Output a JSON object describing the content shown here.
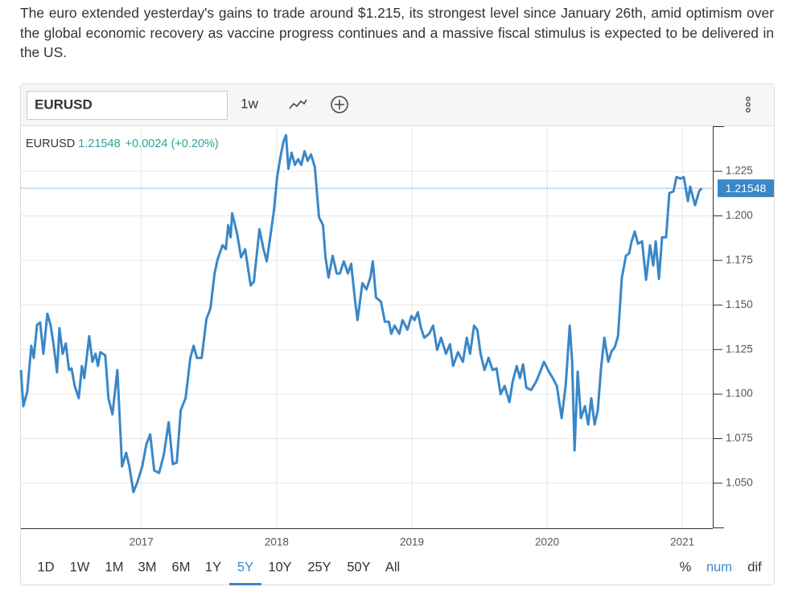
{
  "paragraph": "The euro extended yesterday's gains to trade around $1.215, its strongest level since January 26th, amid optimism over the global economic recovery as vaccine progress continues and a massive fiscal stimulus is expected to be delivered in the US.",
  "toolbar": {
    "symbol": "EURUSD",
    "interval": "1w"
  },
  "chart_data": {
    "type": "line",
    "symbol": "EURUSD",
    "last_price": 1.21548,
    "change": "+0.0024 (+0.20%)",
    "x": [
      2016.109,
      2016.127,
      2016.156,
      2016.186,
      2016.204,
      2016.228,
      2016.251,
      2016.275,
      2016.305,
      2016.329,
      2016.352,
      2016.376,
      2016.394,
      2016.418,
      2016.441,
      2016.465,
      2016.483,
      2016.507,
      2016.537,
      2016.56,
      2016.578,
      2016.614,
      2016.638,
      2016.661,
      2016.679,
      2016.697,
      2016.733,
      2016.756,
      2016.786,
      2016.822,
      2016.857,
      2016.887,
      2016.911,
      2016.941,
      2016.97,
      2017.006,
      2017.036,
      2017.065,
      2017.095,
      2017.131,
      2017.166,
      2017.202,
      2017.232,
      2017.261,
      2017.291,
      2017.327,
      2017.362,
      2017.386,
      2017.41,
      2017.446,
      2017.481,
      2017.511,
      2017.541,
      2017.564,
      2017.6,
      2017.624,
      2017.642,
      2017.66,
      2017.671,
      2017.707,
      2017.737,
      2017.767,
      2017.808,
      2017.832,
      2017.873,
      2017.903,
      2017.927,
      2017.957,
      2017.98,
      2018.004,
      2018.028,
      2018.052,
      2018.07,
      2018.087,
      2018.111,
      2018.135,
      2018.159,
      2018.182,
      2018.206,
      2018.23,
      2018.254,
      2018.283,
      2018.313,
      2018.343,
      2018.361,
      2018.384,
      2018.414,
      2018.444,
      2018.468,
      2018.497,
      2018.527,
      2018.551,
      2018.581,
      2018.598,
      2018.634,
      2018.664,
      2018.693,
      2018.711,
      2018.735,
      2018.771,
      2018.8,
      2018.83,
      2018.848,
      2018.872,
      2018.907,
      2018.931,
      2018.967,
      2018.997,
      2019.02,
      2019.044,
      2019.068,
      2019.092,
      2019.127,
      2019.157,
      2019.187,
      2019.216,
      2019.252,
      2019.282,
      2019.305,
      2019.341,
      2019.377,
      2019.406,
      2019.43,
      2019.46,
      2019.484,
      2019.508,
      2019.537,
      2019.567,
      2019.597,
      2019.626,
      2019.656,
      2019.686,
      2019.721,
      2019.745,
      2019.775,
      2019.799,
      2019.822,
      2019.846,
      2019.882,
      2019.918,
      2019.947,
      2019.977,
      2020.013,
      2020.042,
      2020.072,
      2020.108,
      2020.137,
      2020.167,
      2020.185,
      2020.203,
      2020.226,
      2020.25,
      2020.28,
      2020.304,
      2020.327,
      2020.351,
      2020.375,
      2020.399,
      2020.423,
      2020.452,
      2020.476,
      2020.5,
      2020.524,
      2020.553,
      2020.583,
      2020.607,
      2020.625,
      2020.648,
      2020.672,
      2020.702,
      2020.732,
      2020.761,
      2020.785,
      2020.803,
      2020.827,
      2020.85,
      2020.88,
      2020.904,
      2020.934,
      2020.957,
      2020.987,
      2021.011,
      2021.041,
      2021.058,
      2021.094,
      2021.124,
      2021.142
    ],
    "series": [
      {
        "name": "EURUSD",
        "color": "#3a87c8",
        "values": [
          1.1135,
          1.0932,
          1.1014,
          1.1271,
          1.1203,
          1.1388,
          1.1402,
          1.1226,
          1.1451,
          1.1384,
          1.1271,
          1.1122,
          1.137,
          1.1226,
          1.1284,
          1.1135,
          1.1144,
          1.1045,
          1.0977,
          1.1158,
          1.109,
          1.1325,
          1.1181,
          1.1226,
          1.1158,
          1.1235,
          1.1217,
          1.0977,
          1.0887,
          1.1135,
          1.0594,
          1.0671,
          1.0594,
          1.045,
          1.0504,
          1.0594,
          1.0716,
          1.0774,
          1.0571,
          1.0558,
          1.0661,
          1.0842,
          1.0607,
          1.0616,
          1.091,
          1.0977,
          1.1203,
          1.1271,
          1.1203,
          1.1203,
          1.142,
          1.1483,
          1.1677,
          1.1758,
          1.1835,
          1.1813,
          1.1948,
          1.188,
          1.2015,
          1.1903,
          1.1767,
          1.1813,
          1.1609,
          1.1632,
          1.1925,
          1.1813,
          1.1745,
          1.1903,
          1.2029,
          1.2218,
          1.2331,
          1.2421,
          1.2453,
          1.2264,
          1.2354,
          1.2286,
          1.2318,
          1.2286,
          1.2363,
          1.2309,
          1.2345,
          1.2273,
          1.1993,
          1.1948,
          1.1767,
          1.1654,
          1.1776,
          1.1677,
          1.1677,
          1.1745,
          1.1677,
          1.1731,
          1.1519,
          1.1415,
          1.1623,
          1.1587,
          1.1654,
          1.1745,
          1.1542,
          1.1519,
          1.1406,
          1.1406,
          1.1338,
          1.1384,
          1.1338,
          1.1415,
          1.1361,
          1.1438,
          1.1415,
          1.146,
          1.137,
          1.1316,
          1.1338,
          1.1384,
          1.1248,
          1.1316,
          1.1226,
          1.128,
          1.1158,
          1.1235,
          1.1181,
          1.1316,
          1.1226,
          1.1384,
          1.1361,
          1.1226,
          1.1135,
          1.1203,
          1.1135,
          1.1144,
          1.1,
          1.1045,
          1.0955,
          1.1068,
          1.1158,
          1.109,
          1.1167,
          1.1036,
          1.1023,
          1.1068,
          1.1122,
          1.1181,
          1.1126,
          1.109,
          1.1045,
          1.0865,
          1.1045,
          1.1384,
          1.1181,
          1.0684,
          1.1126,
          1.0865,
          1.0932,
          1.0829,
          1.0977,
          1.0829,
          1.091,
          1.1144,
          1.1316,
          1.1181,
          1.1239,
          1.1262,
          1.1325,
          1.1654,
          1.1776,
          1.179,
          1.1857,
          1.1912,
          1.1844,
          1.1857,
          1.1641,
          1.1835,
          1.1722,
          1.1857,
          1.1646,
          1.188,
          1.188,
          1.2128,
          1.2137,
          1.2218,
          1.2209,
          1.2218,
          1.2083,
          1.2164,
          1.206,
          1.2137,
          1.21548
        ]
      }
    ],
    "xlim": [
      2016.109,
      2021.225
    ],
    "xticks": [
      2017,
      2018,
      2019,
      2020,
      2021
    ],
    "ylim": [
      1.0247,
      1.2503
    ],
    "yticks": [
      {
        "value": 1.05,
        "label": "1.050"
      },
      1.075,
      {
        "value": 1.1,
        "label": "1.100"
      },
      1.125,
      {
        "value": 1.15,
        "label": "1.150"
      },
      1.175,
      {
        "value": 1.2,
        "label": "1.200"
      },
      1.225
    ],
    "grid": true
  },
  "range_buttons": [
    "1D",
    "1W",
    "1M",
    "3M",
    "6M",
    "1Y",
    "5Y",
    "10Y",
    "25Y",
    "50Y",
    "All"
  ],
  "active_range": 6,
  "mode_buttons": [
    "%",
    "num",
    "dif"
  ],
  "active_mode": 1
}
